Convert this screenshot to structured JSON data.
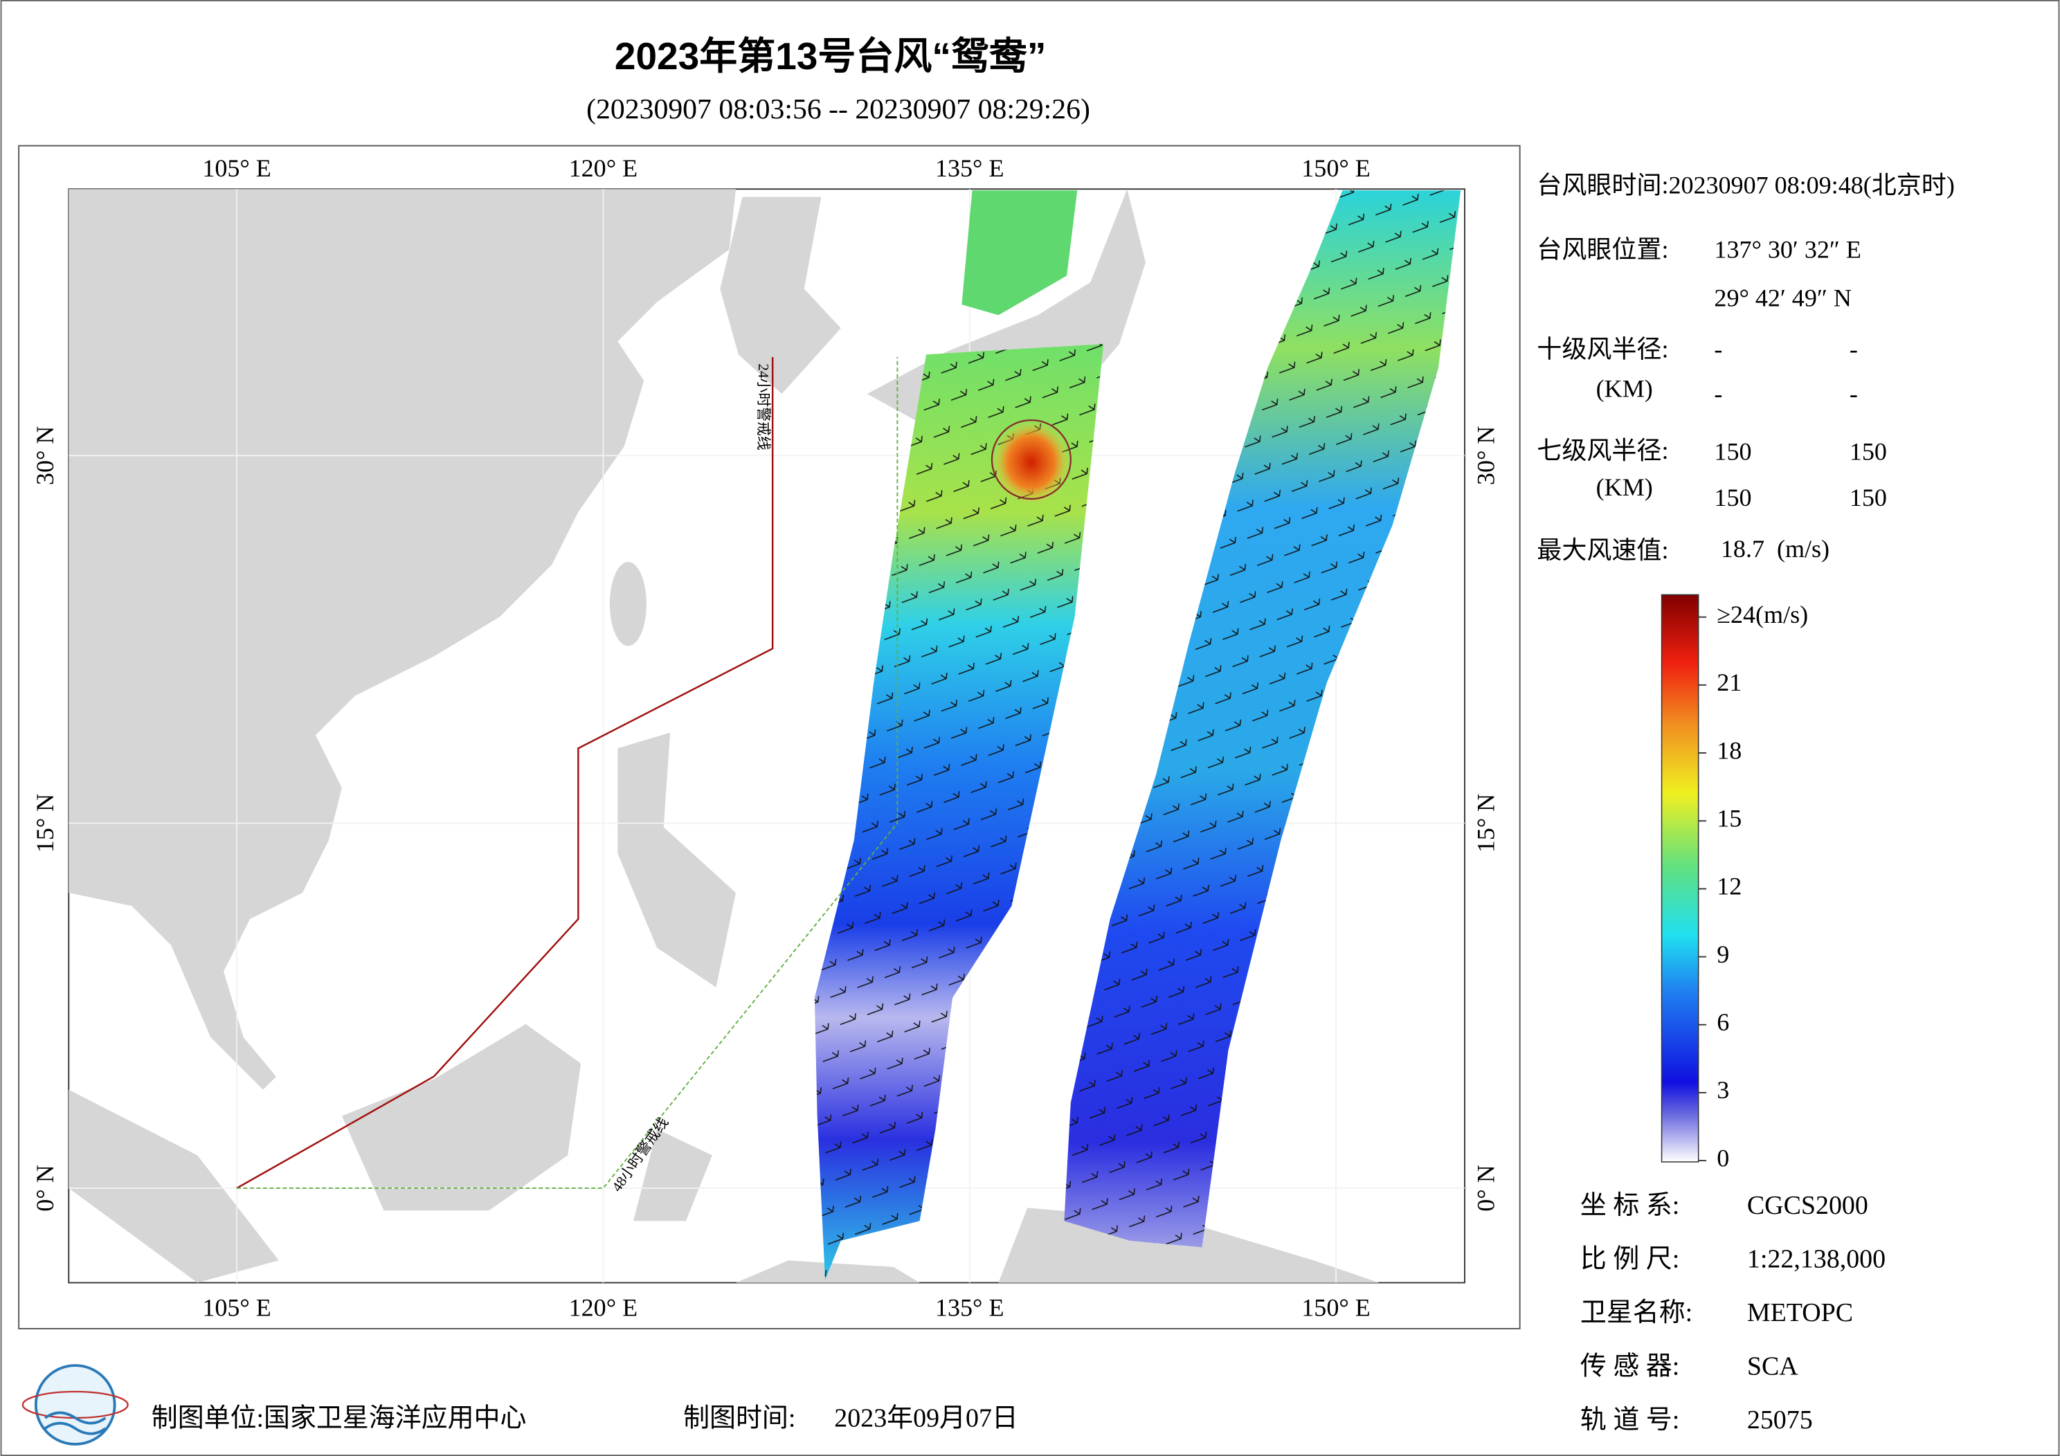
{
  "title": "2023年第13号台风“鸳鸯”",
  "subtitle": "(20230907 08:03:56 -- 20230907 08:29:26)",
  "map": {
    "lon_labels_top": [
      "105° E",
      "120° E",
      "135° E",
      "150° E"
    ],
    "lon_labels_bottom": [
      "105° E",
      "120° E",
      "135° E",
      "150° E"
    ],
    "lat_labels_left": [
      "30° N",
      "15° N",
      "0° N"
    ],
    "lat_labels_right": [
      "30° N",
      "15° N",
      "0° N"
    ],
    "line_24h": "24小时警戒线",
    "line_48h": "48小时警戒线"
  },
  "info": {
    "eye_time": "台风眼时间:20230907 08:09:48(北京时)",
    "eye_pos_label": "台风眼位置:",
    "eye_lon": "137° 30′ 32″ E",
    "eye_lat": "29° 42′ 49″ N",
    "r10_label": "十级风半径:",
    "r10_unit": "(KM)",
    "r10": [
      "-",
      "-",
      "-",
      "-"
    ],
    "r7_label": "七级风半径:",
    "r7_unit": "(KM)",
    "r7": [
      "150",
      "150",
      "150",
      "150"
    ],
    "max_label": "最大风速值:",
    "max_value": "18.7  (m/s)"
  },
  "colorbar": {
    "ticks": [
      0,
      3,
      6,
      9,
      12,
      15,
      18,
      21,
      {
        "value": 24,
        "label": "≥24(m/s)"
      }
    ],
    "range": [
      0,
      24
    ]
  },
  "meta": {
    "rows": [
      [
        "坐 标 系:",
        "CGCS2000"
      ],
      [
        "比 例 尺:",
        "1:22,138,000"
      ],
      [
        "卫星名称:",
        "METOPC"
      ],
      [
        "传 感 器:",
        "SCA"
      ],
      [
        "轨 道 号:",
        "25075"
      ]
    ]
  },
  "footer": {
    "unit": "制图单位:国家卫星海洋应用中心",
    "time_label": "制图时间:",
    "time": "2023年09月07日"
  }
}
